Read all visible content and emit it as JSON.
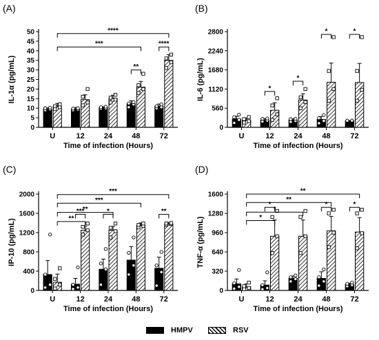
{
  "legend": {
    "hmpv": "HMPV",
    "rsv": "RSV"
  },
  "chart_data": [
    {
      "panel": "(A)",
      "type": "bar",
      "ylabel": "IL-1α (pg/mL)",
      "xlabel": "Time of infection (Hours)",
      "categories": [
        "U",
        "12",
        "24",
        "48",
        "72"
      ],
      "ylim": [
        0,
        50
      ],
      "yticks": [
        0,
        5,
        10,
        15,
        20,
        25,
        30,
        35,
        40,
        45,
        50
      ],
      "series": [
        {
          "name": "HMPV",
          "values": [
            9.5,
            9.5,
            10.3,
            12.3,
            11
          ],
          "errors": [
            0.7,
            0.9,
            0.5,
            1.6,
            1.2
          ],
          "points": [
            [
              9,
              9.5,
              10,
              10.3
            ],
            [
              9,
              9.3,
              9.8,
              10
            ],
            [
              9.8,
              10,
              10.5,
              10.8
            ],
            [
              10.5,
              12,
              12.5,
              13.2
            ],
            [
              10,
              10.5,
              11,
              12
            ]
          ]
        },
        {
          "name": "RSV",
          "values": [
            11,
            14.5,
            15,
            21,
            35
          ],
          "errors": [
            1.5,
            2.5,
            1.8,
            3,
            3
          ],
          "points": [
            [
              9.5,
              10.5,
              11,
              12
            ],
            [
              11.5,
              13,
              16,
              20
            ],
            [
              13,
              14.5,
              15.5,
              17
            ],
            [
              18,
              20,
              22,
              28
            ],
            [
              31,
              34,
              36,
              38
            ]
          ]
        }
      ],
      "brackets": [
        {
          "from": [
            0,
            1
          ],
          "to": [
            4,
            1
          ],
          "label": "****",
          "y": 49
        },
        {
          "from": [
            0,
            1
          ],
          "to": [
            3,
            1
          ],
          "label": "***",
          "y": 42
        },
        {
          "from": [
            3,
            0
          ],
          "to": [
            3,
            1
          ],
          "label": "**",
          "y": 30
        },
        {
          "from": [
            4,
            0
          ],
          "to": [
            4,
            1
          ],
          "label": "****",
          "y": 42
        }
      ]
    },
    {
      "panel": "(B)",
      "type": "bar",
      "ylabel": "IL-6 (pg/mL)",
      "xlabel": "Time of infection (Hours)",
      "categories": [
        "U",
        "12",
        "24",
        "48",
        "72"
      ],
      "ylim": [
        0,
        2800
      ],
      "yticks": [
        0,
        560,
        1120,
        1680,
        2240,
        2800
      ],
      "series": [
        {
          "name": "HMPV",
          "values": [
            245,
            215,
            210,
            230,
            190
          ],
          "errors": [
            80,
            40,
            40,
            90,
            10
          ],
          "points": [
            [
              130,
              220,
              300,
              370
            ],
            [
              170,
              200,
              250,
              260
            ],
            [
              160,
              190,
              240,
              250
            ],
            [
              120,
              190,
              270,
              360
            ],
            [
              185,
              190,
              195,
              200
            ]
          ]
        },
        {
          "name": "RSV",
          "values": [
            210,
            500,
            800,
            1320,
            1310
          ],
          "errors": [
            60,
            220,
            180,
            560,
            560
          ],
          "points": [
            [
              140,
              180,
              240,
              300
            ],
            [
              220,
              380,
              640,
              850
            ],
            [
              560,
              740,
              880,
              1120
            ],
            [
              780,
              1120,
              1650,
              2640
            ],
            [
              780,
              1100,
              1650,
              2640
            ]
          ]
        }
      ],
      "brackets": [
        {
          "from": [
            1,
            0
          ],
          "to": [
            1,
            1
          ],
          "label": "*",
          "y": 1050
        },
        {
          "from": [
            2,
            0
          ],
          "to": [
            2,
            1
          ],
          "label": "*",
          "y": 1350
        },
        {
          "from": [
            3,
            0
          ],
          "to": [
            3,
            1
          ],
          "label": "*",
          "y": 2720
        },
        {
          "from": [
            4,
            0
          ],
          "to": [
            4,
            1
          ],
          "label": "*",
          "y": 2720
        }
      ]
    },
    {
      "panel": "(C)",
      "type": "bar",
      "ylabel": "IP-10 (pg/mL)",
      "xlabel": "Time of infection (Hours)",
      "categories": [
        "U",
        "12",
        "24",
        "48",
        "72"
      ],
      "ylim": [
        0,
        2000
      ],
      "yticks": [
        0,
        400,
        800,
        1200,
        1600,
        2000
      ],
      "series": [
        {
          "name": "HMPV",
          "values": [
            330,
            130,
            440,
            630,
            460
          ],
          "errors": [
            290,
            120,
            210,
            280,
            230
          ],
          "points": [
            [
              60,
              120,
              330,
              1160
            ],
            [
              30,
              60,
              120,
              480
            ],
            [
              120,
              440,
              560,
              860
            ],
            [
              330,
              520,
              780,
              1100
            ],
            [
              100,
              380,
              520,
              800
            ]
          ]
        },
        {
          "name": "RSV",
          "values": [
            170,
            1250,
            1250,
            1350,
            1380
          ],
          "errors": [
            170,
            80,
            80,
            50,
            30
          ],
          "points": [
            [
              40,
              120,
              240,
              460
            ],
            [
              1160,
              1250,
              1320,
              1390
            ],
            [
              1100,
              1230,
              1300,
              1390
            ],
            [
              1310,
              1340,
              1360,
              1390
            ],
            [
              1360,
              1380,
              1390,
              1400
            ]
          ]
        }
      ],
      "brackets": [
        {
          "from": [
            0,
            1
          ],
          "to": [
            4,
            1
          ],
          "label": "***",
          "y": 1990
        },
        {
          "from": [
            0,
            1
          ],
          "to": [
            3,
            1
          ],
          "label": "***",
          "y": 1810
        },
        {
          "from": [
            0,
            1
          ],
          "to": [
            2,
            1
          ],
          "label": "**",
          "y": 1620
        },
        {
          "from": [
            0,
            1
          ],
          "to": [
            1,
            1
          ],
          "label": "**",
          "y": 1430
        },
        {
          "from": [
            1,
            0
          ],
          "to": [
            1,
            1
          ],
          "label": "***",
          "y": 1580
        },
        {
          "from": [
            2,
            0
          ],
          "to": [
            2,
            1
          ],
          "label": "*",
          "y": 1580
        },
        {
          "from": [
            4,
            0
          ],
          "to": [
            4,
            1
          ],
          "label": "**",
          "y": 1580
        }
      ]
    },
    {
      "panel": "(D)",
      "type": "bar",
      "ylabel": "TNF-α (pg/mL)",
      "xlabel": "Time of infection (Hours)",
      "categories": [
        "U",
        "12",
        "24",
        "48",
        "72"
      ],
      "ylim": [
        0,
        1600
      ],
      "yticks": [
        0,
        320,
        640,
        960,
        1280,
        1600
      ],
      "series": [
        {
          "name": "HMPV",
          "values": [
            110,
            90,
            200,
            200,
            100
          ],
          "errors": [
            80,
            70,
            40,
            110,
            20
          ],
          "points": [
            [
              30,
              60,
              120,
              340
            ],
            [
              20,
              40,
              90,
              300
            ],
            [
              150,
              190,
              220,
              250
            ],
            [
              80,
              150,
              220,
              350
            ],
            [
              70,
              90,
              110,
              130
            ]
          ]
        },
        {
          "name": "RSV",
          "values": [
            60,
            900,
            900,
            990,
            970
          ],
          "errors": [
            50,
            270,
            270,
            240,
            240
          ],
          "points": [
            [
              20,
              40,
              70,
              130
            ],
            [
              620,
              900,
              1220,
              1320
            ],
            [
              620,
              900,
              1220,
              1320
            ],
            [
              720,
              960,
              1280,
              1340
            ],
            [
              700,
              950,
              1280,
              1340
            ]
          ]
        }
      ],
      "brackets": [
        {
          "from": [
            0,
            1
          ],
          "to": [
            4,
            1
          ],
          "label": "**",
          "y": 1600
        },
        {
          "from": [
            0,
            1
          ],
          "to": [
            3,
            1
          ],
          "label": "**",
          "y": 1460
        },
        {
          "from": [
            0,
            1
          ],
          "to": [
            2,
            1
          ],
          "label": "*",
          "y": 1300
        },
        {
          "from": [
            0,
            1
          ],
          "to": [
            1,
            1
          ],
          "label": "*",
          "y": 1160
        },
        {
          "from": [
            1,
            0
          ],
          "to": [
            1,
            1
          ],
          "label": "*",
          "y": 1380
        },
        {
          "from": [
            3,
            0
          ],
          "to": [
            3,
            1
          ],
          "label": "*",
          "y": 1380
        },
        {
          "from": [
            4,
            0
          ],
          "to": [
            4,
            1
          ],
          "label": "*",
          "y": 1380
        }
      ]
    }
  ]
}
